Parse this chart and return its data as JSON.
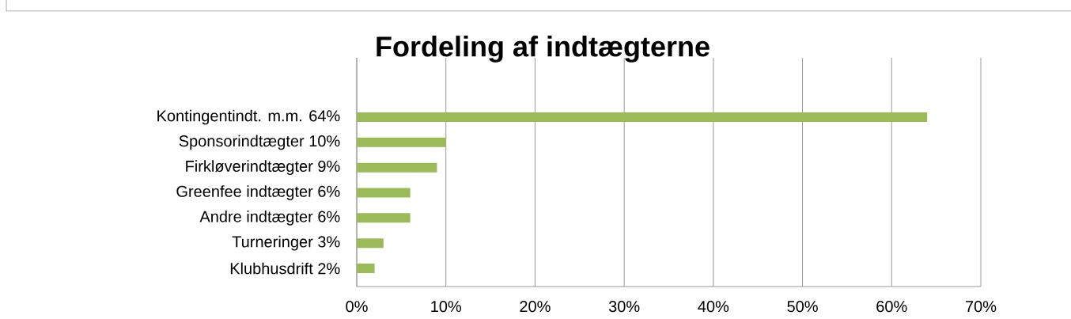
{
  "chart_data": {
    "type": "bar",
    "orientation": "horizontal",
    "title": "Fordeling af indtægterne",
    "categories": [
      "Kontingentindt. m.m. 64%",
      "Sponsorindtægter 10%",
      "Firkløverindtægter 9%",
      "Greenfee indtægter 6%",
      "Andre indtægter 6%",
      "Turneringer 3%",
      "Klubhusdrift 2%"
    ],
    "values": [
      64,
      10,
      9,
      6,
      6,
      3,
      2
    ],
    "color": "#9bbb59",
    "xlim": [
      0,
      70
    ],
    "xticks": [
      {
        "value": 0,
        "label": "0%"
      },
      {
        "value": 10,
        "label": "10%"
      },
      {
        "value": 20,
        "label": "20%"
      },
      {
        "value": 30,
        "label": "30%"
      },
      {
        "value": 40,
        "label": "40%"
      },
      {
        "value": 50,
        "label": "50%"
      },
      {
        "value": 60,
        "label": "60%"
      },
      {
        "value": 70,
        "label": "70%"
      }
    ],
    "grid": "x"
  }
}
